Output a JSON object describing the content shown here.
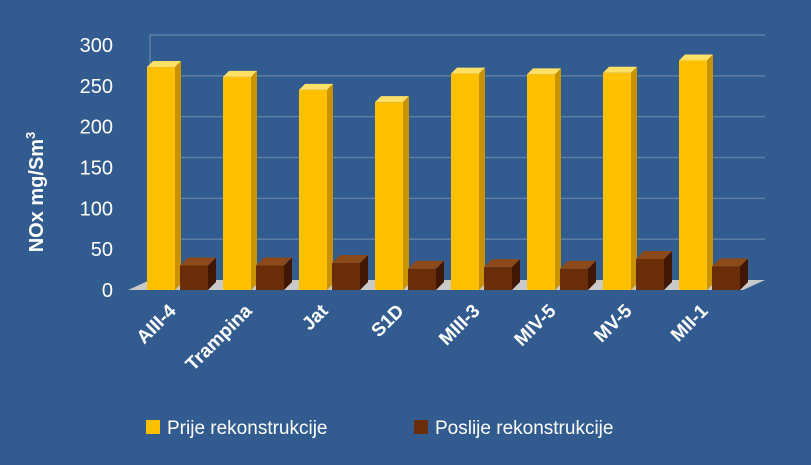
{
  "chart_data": {
    "type": "bar",
    "categories": [
      "AIII-4",
      "Trampina",
      "Jat",
      "S1D",
      "MIII-3",
      "MIV-5",
      "MV-5",
      "MII-1"
    ],
    "series": [
      {
        "name": "Prije rekonstrukcije",
        "values": [
          273,
          261,
          245,
          230,
          265,
          264,
          266,
          281
        ]
      },
      {
        "name": "Poslije rekonstrukcije",
        "values": [
          30,
          30,
          33,
          26,
          28,
          26,
          38,
          29
        ]
      }
    ],
    "ylabel": {
      "main": "NOx mg/Sm",
      "sup": "3"
    },
    "ylim": [
      0,
      300
    ],
    "yticks": [
      0,
      50,
      100,
      150,
      200,
      250,
      300
    ],
    "grid": true,
    "legend_position": "bottom",
    "colors": {
      "background": "#325b8f",
      "gridline": "#5f7ea6",
      "floor": "#c9c9c9",
      "series": [
        "#ffc000",
        "#6b2c08"
      ],
      "series_side": [
        "#c99200",
        "#3f1703"
      ],
      "series_top": [
        "#ffe066",
        "#8c4a1a"
      ]
    }
  }
}
